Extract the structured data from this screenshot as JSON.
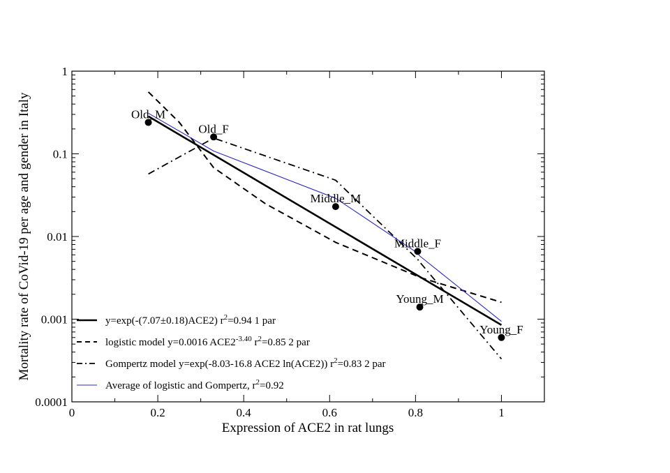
{
  "chart_data": {
    "type": "scatter",
    "xlabel": "Expression of ACE2 in rat lungs",
    "ylabel": "Mortality rate of CoVid-19 per age and gender in Italy",
    "xlim": [
      0,
      1.1
    ],
    "ylim": [
      0.0001,
      1
    ],
    "yscale": "log",
    "x_ticks": [
      0,
      0.2,
      0.4,
      0.6,
      0.8,
      1
    ],
    "x_tick_labels": [
      "0",
      "0.2",
      "0.4",
      "0.6",
      "0.8",
      "1"
    ],
    "y_ticks": [
      0.0001,
      0.001,
      0.01,
      0.1,
      1
    ],
    "y_tick_labels": [
      "0.0001",
      "0.001",
      "0.01",
      "0.1",
      "1"
    ],
    "grid": false,
    "legend_position": "bottom-left",
    "points": [
      {
        "label": "Old_M",
        "x": 0.178,
        "y": 0.24
      },
      {
        "label": "Old_F",
        "x": 0.33,
        "y": 0.16
      },
      {
        "label": "Middle_M",
        "x": 0.614,
        "y": 0.023
      },
      {
        "label": "Middle_F",
        "x": 0.805,
        "y": 0.0066
      },
      {
        "label": "Young_M",
        "x": 0.81,
        "y": 0.0014
      },
      {
        "label": "Young_F",
        "x": 1.0,
        "y": 0.0006
      }
    ],
    "series": [
      {
        "legend": "y=exp(-(7.07±0.18)ACE2) r²=0.94 1 par",
        "legend_parts": {
          "main": "y=exp(-(7.07±0.18)ACE2) r",
          "sup": "2",
          "tail": "=0.94 1 par"
        },
        "style": "solid-thick",
        "color": "#000000",
        "x": [
          0.178,
          1.0
        ],
        "y": [
          0.284,
          0.00085
        ]
      },
      {
        "legend": "logistic model y=0.0016 ACE2^-3.40 r²=0.85 2 par",
        "legend_parts": {
          "main": "logistic model y=0.0016 ACE2",
          "sup": "-3.40",
          "mid": " r",
          "sup2": "2",
          "tail": "=0.85 2 par"
        },
        "style": "dashed",
        "color": "#000000",
        "x": [
          0.178,
          0.25,
          0.33,
          0.45,
          0.614,
          0.805,
          0.81,
          1.0
        ],
        "y": [
          0.56,
          0.24,
          0.068,
          0.025,
          0.0085,
          0.0033,
          0.0032,
          0.0016
        ]
      },
      {
        "legend": "Gompertz model y=exp(-8.03-16.8 ACE2 ln(ACE2)) r²=0.83 2 par",
        "legend_parts": {
          "main": "Gompertz model y=exp(-8.03-16.8 ACE2 ln(ACE2))  r",
          "sup": "2",
          "tail": "=0.83 2 par"
        },
        "style": "dash-dot",
        "color": "#000000",
        "x": [
          0.178,
          0.33,
          0.614,
          0.805,
          0.81,
          1.0
        ],
        "y": [
          0.057,
          0.155,
          0.048,
          0.0053,
          0.0049,
          0.00033
        ]
      },
      {
        "legend": "Average of logistic and Gompertz, r²=0.92",
        "legend_parts": {
          "main": "Average of logistic and Gompertz, r",
          "sup": "2",
          "tail": "=0.92"
        },
        "style": "thin",
        "color": "#2b2bb8",
        "x": [
          0.178,
          0.33,
          0.614,
          0.805,
          0.81,
          1.0
        ],
        "y": [
          0.31,
          0.108,
          0.029,
          0.0063,
          0.0058,
          0.00094
        ]
      }
    ]
  }
}
